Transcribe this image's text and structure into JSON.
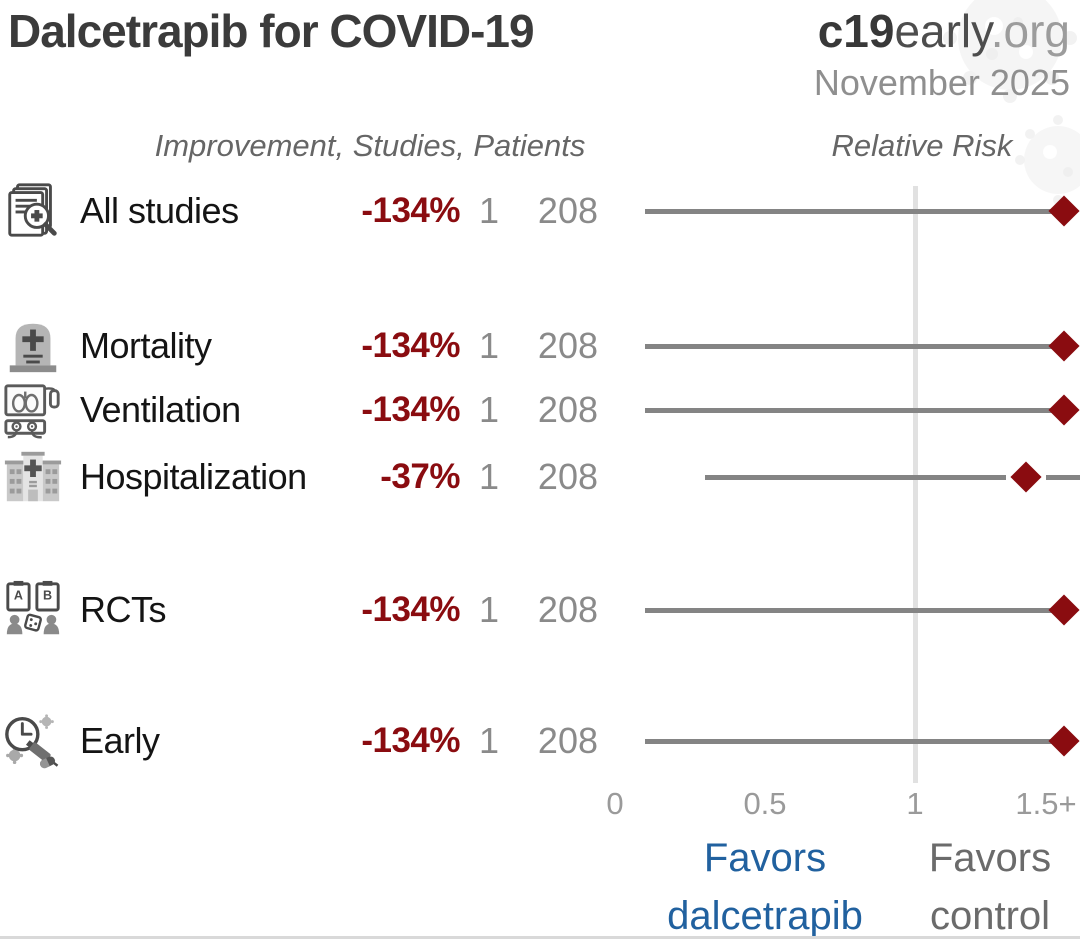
{
  "header": {
    "title": "Dalcetrapib for COVID-19",
    "brand_bold": "c19",
    "brand_mid": "early",
    "brand_suffix": ".org",
    "date": "November 2025"
  },
  "columns": {
    "left_header": "Improvement, Studies, Patients",
    "right_header": "Relative Risk"
  },
  "chart_data": {
    "type": "forest",
    "title": "Dalcetrapib for COVID-19",
    "x_axis_label": "Relative Risk",
    "axis": {
      "reference_value": 1,
      "cap_value": 1.5,
      "xlim": [
        0,
        1.55
      ],
      "ticks": [
        {
          "label": "0",
          "value": 0
        },
        {
          "label": "0.5",
          "value": 0.5
        },
        {
          "label": "1",
          "value": 1
        },
        {
          "label": "1.5+",
          "value": 1.5
        }
      ]
    },
    "rows": [
      {
        "label": "All studies",
        "icon": "all-studies-icon",
        "improvement": "-134%",
        "studies": "1",
        "patients": "208",
        "rr": 2.34,
        "ci_low": 0.1,
        "ci_high": null,
        "capped": true
      },
      {
        "label": "Mortality",
        "icon": "mortality-icon",
        "improvement": "-134%",
        "studies": "1",
        "patients": "208",
        "rr": 2.34,
        "ci_low": 0.1,
        "ci_high": null,
        "capped": true
      },
      {
        "label": "Ventilation",
        "icon": "ventilation-icon",
        "improvement": "-134%",
        "studies": "1",
        "patients": "208",
        "rr": 2.34,
        "ci_low": 0.1,
        "ci_high": null,
        "capped": true
      },
      {
        "label": "Hospitalization",
        "icon": "hospitalization-icon",
        "improvement": "-37%",
        "studies": "1",
        "patients": "208",
        "rr": 1.37,
        "ci_low": 0.3,
        "ci_high": null,
        "capped": false
      },
      {
        "label": "RCTs",
        "icon": "rcts-icon",
        "improvement": "-134%",
        "studies": "1",
        "patients": "208",
        "rr": 2.34,
        "ci_low": 0.1,
        "ci_high": null,
        "capped": true
      },
      {
        "label": "Early",
        "icon": "early-icon",
        "improvement": "-134%",
        "studies": "1",
        "patients": "208",
        "rr": 2.34,
        "ci_low": 0.1,
        "ci_high": null,
        "capped": true
      }
    ],
    "footer": {
      "favors_left": "Favors dalcetrapib",
      "favors_right": "Favors control"
    }
  },
  "colors": {
    "effect_red": "#8a0c10",
    "favors_blue": "#21619f",
    "line_gray": "#848484",
    "reference_gray": "#e1e1e1",
    "text_dark": "#3b3b3b",
    "muted_gray": "#8a8a8a"
  }
}
